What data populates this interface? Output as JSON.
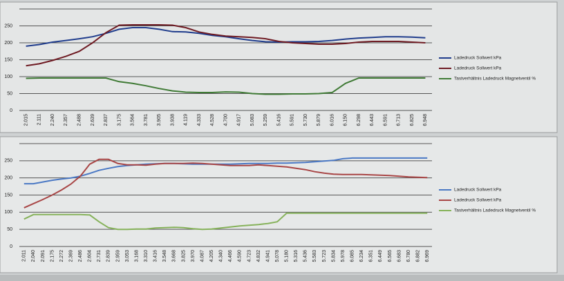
{
  "chart_data": [
    {
      "type": "line",
      "categories": [
        "2.015",
        "2.111",
        "2.240",
        "2.357",
        "2.488",
        "2.639",
        "2.837",
        "3.175",
        "3.564",
        "3.781",
        "3.905",
        "3.938",
        "4.119",
        "4.333",
        "4.528",
        "4.700",
        "4.917",
        "5.083",
        "5.259",
        "5.416",
        "5.591",
        "5.730",
        "5.879",
        "6.016",
        "6.150",
        "6.298",
        "6.443",
        "6.591",
        "6.713",
        "6.825",
        "6.948"
      ],
      "series": [
        {
          "name": "Ladedruck Sollwert kPa",
          "color": "#1f3c8c",
          "values": [
            190,
            195,
            202,
            207,
            212,
            218,
            228,
            240,
            245,
            245,
            240,
            233,
            232,
            228,
            222,
            218,
            212,
            207,
            203,
            202,
            203,
            203,
            204,
            207,
            211,
            214,
            216,
            218,
            218,
            217,
            215
          ]
        },
        {
          "name": "Ladedruck Sollwert kPa",
          "color": "#6e1a22",
          "values": [
            132,
            138,
            148,
            160,
            175,
            200,
            230,
            252,
            253,
            253,
            253,
            252,
            245,
            232,
            225,
            220,
            218,
            216,
            212,
            204,
            200,
            198,
            196,
            196,
            198,
            202,
            204,
            204,
            204,
            202,
            200
          ]
        },
        {
          "name": "Tastverhältnis Ladedruck Magnetventil %",
          "color": "#3f7a35",
          "values": [
            95,
            96,
            96,
            96,
            96,
            96,
            96,
            85,
            80,
            73,
            65,
            58,
            54,
            53,
            53,
            55,
            54,
            50,
            48,
            48,
            49,
            49,
            50,
            53,
            80,
            96,
            96,
            96,
            96,
            96,
            96
          ]
        }
      ],
      "ylim": [
        0,
        300
      ],
      "yticks": [
        0,
        50,
        100,
        150,
        200,
        250
      ],
      "grid": true
    },
    {
      "type": "line",
      "categories": [
        "2.011",
        "2.040",
        "2.091",
        "2.175",
        "2.272",
        "2.369",
        "2.486",
        "2.604",
        "2.731",
        "2.839",
        "2.959",
        "3.053",
        "3.168",
        "3.310",
        "3.416",
        "3.548",
        "3.668",
        "3.825",
        "3.970",
        "4.087",
        "4.205",
        "4.340",
        "4.466",
        "4.590",
        "4.723",
        "4.832",
        "4.941",
        "5.078",
        "5.180",
        "5.316",
        "5.436",
        "5.583",
        "5.723",
        "5.834",
        "5.978",
        "6.085",
        "6.234",
        "6.351",
        "6.449",
        "6.565",
        "6.683",
        "6.780",
        "6.882",
        "6.969"
      ],
      "series": [
        {
          "name": "Ladedruck Sollwert kPa",
          "color": "#4a78c4",
          "values": [
            183,
            183,
            188,
            193,
            197,
            200,
            205,
            213,
            222,
            228,
            233,
            236,
            238,
            240,
            241,
            242,
            242,
            241,
            240,
            240,
            240,
            240,
            240,
            241,
            242,
            242,
            242,
            243,
            243,
            244,
            245,
            247,
            249,
            251,
            256,
            258,
            258,
            258,
            258,
            258,
            258,
            258,
            258,
            258
          ]
        },
        {
          "name": "Ladedruck Sollwert kPa",
          "color": "#a84545",
          "values": [
            113,
            125,
            137,
            150,
            165,
            182,
            205,
            240,
            254,
            254,
            242,
            238,
            238,
            237,
            240,
            242,
            242,
            242,
            243,
            242,
            240,
            238,
            236,
            236,
            236,
            238,
            236,
            234,
            232,
            228,
            224,
            218,
            214,
            211,
            210,
            210,
            210,
            209,
            208,
            207,
            205,
            203,
            202,
            201
          ]
        },
        {
          "name": "Tastverhältnis Ladedruck Magnetventil %",
          "color": "#86b25a",
          "values": [
            80,
            93,
            93,
            93,
            93,
            93,
            93,
            92,
            72,
            55,
            50,
            50,
            51,
            51,
            54,
            55,
            56,
            55,
            52,
            50,
            51,
            54,
            57,
            60,
            62,
            64,
            67,
            72,
            97,
            97,
            97,
            97,
            97,
            97,
            97,
            97,
            97,
            97,
            97,
            97,
            97,
            97,
            97,
            97
          ]
        }
      ],
      "ylim": [
        0,
        300
      ],
      "yticks": [
        0,
        50,
        100,
        150,
        200,
        250
      ],
      "grid": true
    }
  ]
}
